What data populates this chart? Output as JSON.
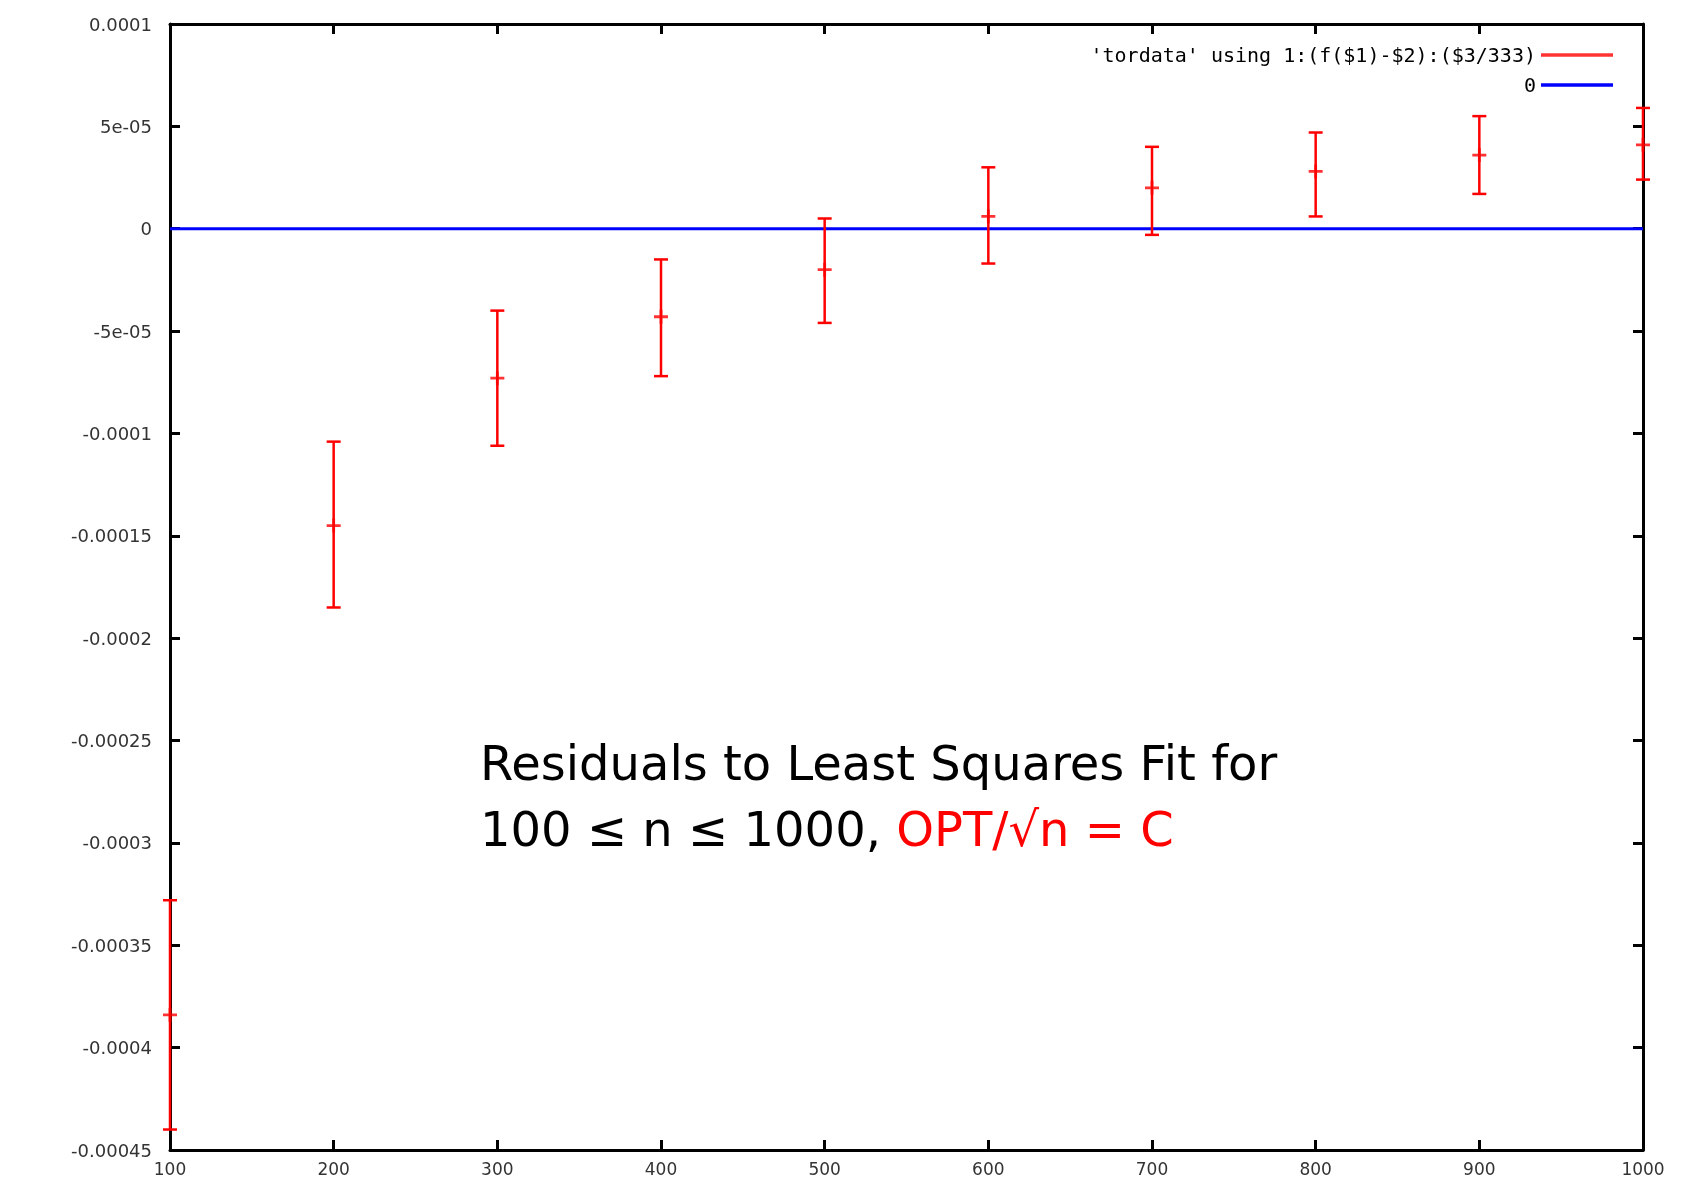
{
  "chart_data": {
    "type": "scatter",
    "x": [
      100,
      200,
      300,
      400,
      500,
      600,
      700,
      800,
      900,
      1000
    ],
    "series": [
      {
        "name": "'tordata' using 1:(f($1)-$2):($3/333)",
        "color": "#ff0000",
        "marker": "cross",
        "values": [
          -0.000384,
          -0.000145,
          -7.3e-05,
          -4.3e-05,
          -2e-05,
          6e-06,
          2e-05,
          2.8e-05,
          3.6e-05,
          4.1e-05
        ],
        "errors": [
          [
            -0.00044,
            -0.000328
          ],
          [
            -0.000185,
            -0.000104
          ],
          [
            -0.000106,
            -4e-05
          ],
          [
            -7.2e-05,
            -1.5e-05
          ],
          [
            -4.6e-05,
            5e-06
          ],
          [
            -1.7e-05,
            3e-05
          ],
          [
            -3e-06,
            4e-05
          ],
          [
            6e-06,
            4.7e-05
          ],
          [
            1.7e-05,
            5.5e-05
          ],
          [
            2.4e-05,
            5.9e-05
          ]
        ]
      },
      {
        "name": "0",
        "type": "line",
        "color": "#0000ff",
        "x": [
          100,
          1000
        ],
        "values": [
          0,
          0
        ]
      }
    ],
    "xlim": [
      100,
      1000
    ],
    "xticks": [
      100,
      200,
      300,
      400,
      500,
      600,
      700,
      800,
      900,
      1000
    ],
    "ylim": [
      -0.00045,
      0.0001
    ],
    "yticks": [
      {
        "value": -0.00045,
        "label": "-0.00045"
      },
      {
        "value": -0.0004,
        "label": "-0.0004"
      },
      {
        "value": -0.00035,
        "label": "-0.00035"
      },
      {
        "value": -0.0003,
        "label": "-0.0003"
      },
      {
        "value": -0.00025,
        "label": "-0.00025"
      },
      {
        "value": -0.0002,
        "label": "-0.0002"
      },
      {
        "value": -0.00015,
        "label": "-0.00015"
      },
      {
        "value": -0.0001,
        "label": "-0.0001"
      },
      {
        "value": -5e-05,
        "label": "-5e-05"
      },
      {
        "value": 0,
        "label": "0"
      },
      {
        "value": 5e-05,
        "label": "5e-05"
      },
      {
        "value": 0.0001,
        "label": "0.0001"
      }
    ],
    "grid": false,
    "legend": "top right",
    "annotations": [
      "Residuals to Least Squares Fit for",
      "100 ≤ n ≤ 1000,",
      "OPT/√n = C"
    ]
  }
}
